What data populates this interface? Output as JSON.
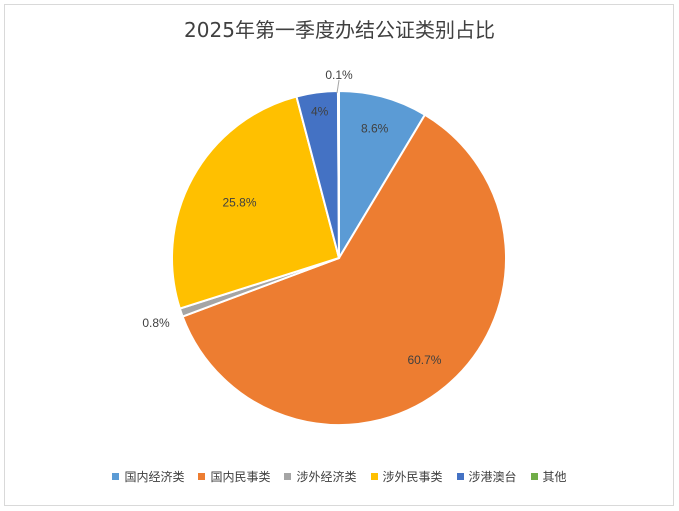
{
  "chart_data": {
    "type": "pie",
    "title": "2025年第一季度办结公证类别占比",
    "categories": [
      "国内经济类",
      "国内民事类",
      "涉外经济类",
      "涉外民事类",
      "涉港澳台",
      "其他"
    ],
    "values": [
      8.6,
      60.7,
      0.8,
      25.8,
      4,
      0.1
    ],
    "data_labels": [
      "8.6%",
      "60.7%",
      "0.8%",
      "25.8%",
      "4%",
      "0.1%"
    ],
    "colors": [
      "#5b9bd5",
      "#ed7d31",
      "#a5a5a5",
      "#ffc000",
      "#4472c4",
      "#70ad47"
    ],
    "legend": "bottom",
    "start_angle_deg": 0,
    "direction": "clockwise"
  }
}
